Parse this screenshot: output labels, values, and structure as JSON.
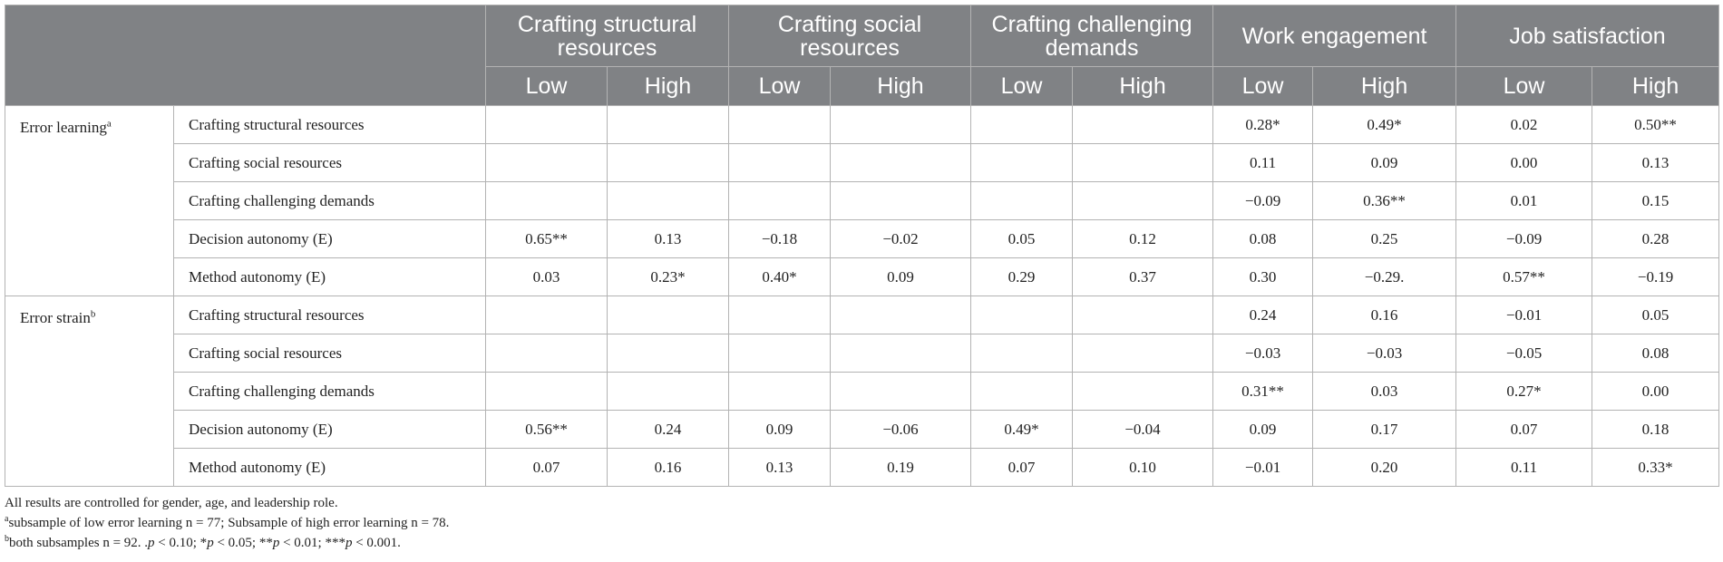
{
  "header": {
    "groups": [
      "Crafting structural resources",
      "Crafting social resources",
      "Crafting challenging demands",
      "Work engagement",
      "Job satisfaction"
    ],
    "sub": {
      "low": "Low",
      "high": "High"
    }
  },
  "blocks": [
    {
      "label": "Error learning",
      "sup": "a",
      "rows": [
        {
          "predictor": "Crafting structural resources",
          "values": [
            "",
            "",
            "",
            "",
            "",
            "",
            "0.28*",
            "0.49*",
            "0.02",
            "0.50**"
          ]
        },
        {
          "predictor": "Crafting social resources",
          "values": [
            "",
            "",
            "",
            "",
            "",
            "",
            "0.11",
            "0.09",
            "0.00",
            "0.13"
          ]
        },
        {
          "predictor": "Crafting challenging demands",
          "values": [
            "",
            "",
            "",
            "",
            "",
            "",
            "−0.09",
            "0.36**",
            "0.01",
            "0.15"
          ]
        },
        {
          "predictor": "Decision autonomy (E)",
          "values": [
            "0.65**",
            "0.13",
            "−0.18",
            "−0.02",
            "0.05",
            "0.12",
            "0.08",
            "0.25",
            "−0.09",
            "0.28"
          ]
        },
        {
          "predictor": "Method autonomy (E)",
          "values": [
            "0.03",
            "0.23*",
            "0.40*",
            "0.09",
            "0.29",
            "0.37",
            "0.30",
            "−0.29.",
            "0.57**",
            "−0.19"
          ]
        }
      ]
    },
    {
      "label": "Error strain",
      "sup": "b",
      "rows": [
        {
          "predictor": "Crafting structural resources",
          "values": [
            "",
            "",
            "",
            "",
            "",
            "",
            "0.24",
            "0.16",
            "−0.01",
            "0.05"
          ]
        },
        {
          "predictor": "Crafting social resources",
          "values": [
            "",
            "",
            "",
            "",
            "",
            "",
            "−0.03",
            "−0.03",
            "−0.05",
            "0.08"
          ]
        },
        {
          "predictor": "Crafting challenging demands",
          "values": [
            "",
            "",
            "",
            "",
            "",
            "",
            "0.31**",
            "0.03",
            "0.27*",
            "0.00"
          ]
        },
        {
          "predictor": "Decision autonomy (E)",
          "values": [
            "0.56**",
            "0.24",
            "0.09",
            "−0.06",
            "0.49*",
            "−0.04",
            "0.09",
            "0.17",
            "0.07",
            "0.18"
          ]
        },
        {
          "predictor": "Method autonomy (E)",
          "values": [
            "0.07",
            "0.16",
            "0.13",
            "0.19",
            "0.07",
            "0.10",
            "−0.01",
            "0.20",
            "0.11",
            "0.33*"
          ]
        }
      ]
    }
  ],
  "notes": {
    "line1": "All results are controlled for gender, age, and leadership role.",
    "line2_sup": "a",
    "line2": "subsample of low error learning n = 77; Subsample of high error learning n = 78.",
    "line3_sup": "b",
    "line3_a": "both subsamples n = 92. .",
    "p1": "p",
    "line3_b": " < 0.10; *",
    "p2": "p",
    "line3_c": " < 0.05; **",
    "p3": "p",
    "line3_d": " < 0.01; ***",
    "p4": "p",
    "line3_e": " < 0.001."
  }
}
